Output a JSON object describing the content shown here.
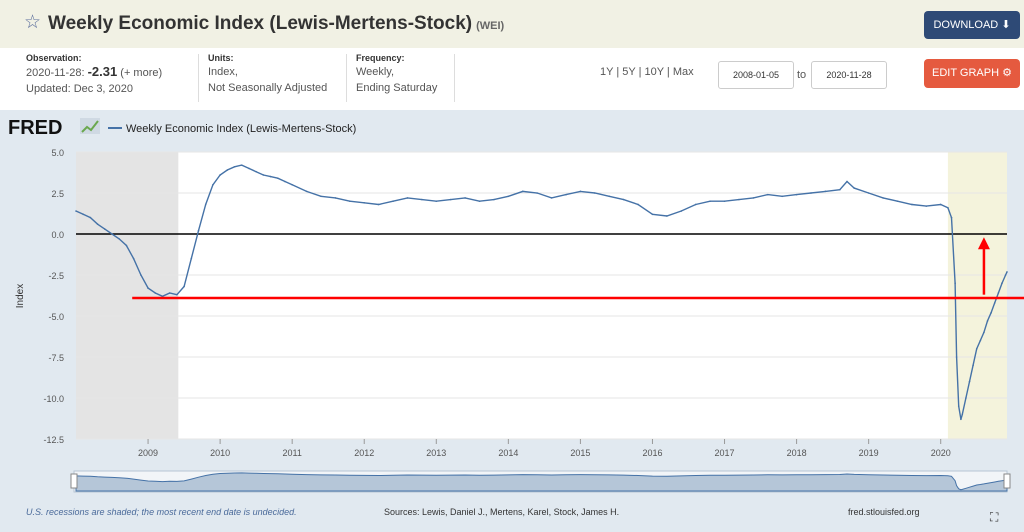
{
  "header": {
    "title": "Weekly Economic Index (Lewis-Mertens-Stock)",
    "series_id": "(WEI)",
    "download_label": "DOWNLOAD"
  },
  "observation": {
    "label": "Observation:",
    "date": "2020-11-28:",
    "value": "-2.31",
    "more": "(+ more)",
    "updated": "Updated: Dec 3, 2020"
  },
  "units": {
    "label": "Units:",
    "line1": "Index,",
    "line2": "Not Seasonally Adjusted"
  },
  "frequency": {
    "label": "Frequency:",
    "line1": "Weekly,",
    "line2": "Ending Saturday"
  },
  "ranges": [
    "1Y",
    "5Y",
    "10Y",
    "Max"
  ],
  "date_from": "2008-01-05",
  "date_to": "2020-11-28",
  "to_label": "to",
  "edit_label": "EDIT GRAPH",
  "legend": {
    "logo": "FRED",
    "series": "Weekly Economic Index (Lewis-Mertens-Stock)"
  },
  "footer": {
    "note": "U.S. recessions are shaded; the most recent end date is undecided.",
    "sources": "Sources: Lewis, Daniel J., Mertens, Karel, Stock, James H.",
    "site": "fred.stlouisfed.org"
  },
  "colors": {
    "line": "#4572a7",
    "recession": "#e4e4e4",
    "highlight": "#f4f3dc",
    "annotation": "#ff0000",
    "zero_line": "#000000"
  },
  "chart_data": {
    "type": "line",
    "ylabel": "Index",
    "ylim": [
      -12.5,
      5.0
    ],
    "yticks": [
      5.0,
      2.5,
      0.0,
      -2.5,
      -5.0,
      -7.5,
      -10.0,
      -12.5
    ],
    "ytick_labels": [
      "5.0",
      "2.5",
      "0.0",
      "-2.5",
      "-5.0",
      "-7.5",
      "-10.0",
      "-12.5"
    ],
    "xlim": [
      2008.0,
      2020.92
    ],
    "xticks": [
      2009,
      2010,
      2011,
      2012,
      2013,
      2014,
      2015,
      2016,
      2017,
      2018,
      2019,
      2020
    ],
    "recessions": [
      [
        2008.0,
        2009.42
      ],
      [
        2020.1,
        2020.92
      ]
    ],
    "series": [
      {
        "name": "Weekly Economic Index (Lewis-Mertens-Stock)",
        "x": [
          2008.0,
          2008.1,
          2008.2,
          2008.3,
          2008.4,
          2008.5,
          2008.6,
          2008.7,
          2008.8,
          2008.9,
          2009.0,
          2009.1,
          2009.2,
          2009.3,
          2009.4,
          2009.5,
          2009.6,
          2009.7,
          2009.8,
          2009.9,
          2010.0,
          2010.1,
          2010.2,
          2010.3,
          2010.4,
          2010.5,
          2010.6,
          2010.7,
          2010.8,
          2010.9,
          2011.0,
          2011.2,
          2011.4,
          2011.6,
          2011.8,
          2012.0,
          2012.2,
          2012.4,
          2012.6,
          2012.8,
          2013.0,
          2013.2,
          2013.4,
          2013.6,
          2013.8,
          2014.0,
          2014.2,
          2014.4,
          2014.6,
          2014.8,
          2015.0,
          2015.2,
          2015.4,
          2015.6,
          2015.8,
          2016.0,
          2016.2,
          2016.4,
          2016.6,
          2016.8,
          2017.0,
          2017.2,
          2017.4,
          2017.6,
          2017.8,
          2018.0,
          2018.2,
          2018.4,
          2018.6,
          2018.7,
          2018.8,
          2019.0,
          2019.2,
          2019.4,
          2019.6,
          2019.8,
          2020.0,
          2020.1,
          2020.15,
          2020.2,
          2020.22,
          2020.25,
          2020.28,
          2020.3,
          2020.35,
          2020.4,
          2020.45,
          2020.5,
          2020.55,
          2020.6,
          2020.65,
          2020.7,
          2020.75,
          2020.8,
          2020.85,
          2020.9,
          2020.92
        ],
        "values": [
          1.4,
          1.2,
          1.0,
          0.6,
          0.3,
          0.0,
          -0.3,
          -0.7,
          -1.5,
          -2.5,
          -3.3,
          -3.6,
          -3.8,
          -3.6,
          -3.7,
          -3.2,
          -1.5,
          0.2,
          1.8,
          3.0,
          3.6,
          3.9,
          4.1,
          4.2,
          4.0,
          3.8,
          3.6,
          3.5,
          3.4,
          3.2,
          3.0,
          2.6,
          2.3,
          2.2,
          2.0,
          1.9,
          1.8,
          2.0,
          2.2,
          2.1,
          2.0,
          2.1,
          2.2,
          2.0,
          2.1,
          2.3,
          2.6,
          2.5,
          2.2,
          2.4,
          2.6,
          2.5,
          2.3,
          2.1,
          1.8,
          1.2,
          1.1,
          1.4,
          1.8,
          2.0,
          2.0,
          2.1,
          2.2,
          2.4,
          2.3,
          2.4,
          2.5,
          2.6,
          2.7,
          3.2,
          2.8,
          2.5,
          2.2,
          2.0,
          1.8,
          1.7,
          1.8,
          1.6,
          1.0,
          -3.0,
          -7.5,
          -10.5,
          -11.3,
          -11.0,
          -10.0,
          -9.0,
          -8.0,
          -7.0,
          -6.5,
          -6.0,
          -5.3,
          -4.8,
          -4.2,
          -3.6,
          -3.0,
          -2.5,
          -2.31
        ]
      }
    ],
    "annotations": {
      "horizontal_level": -3.9,
      "horizontal_from": 2008.78,
      "arrow_x": 2020.6,
      "arrow_from": -3.7,
      "arrow_to": -0.2
    }
  }
}
